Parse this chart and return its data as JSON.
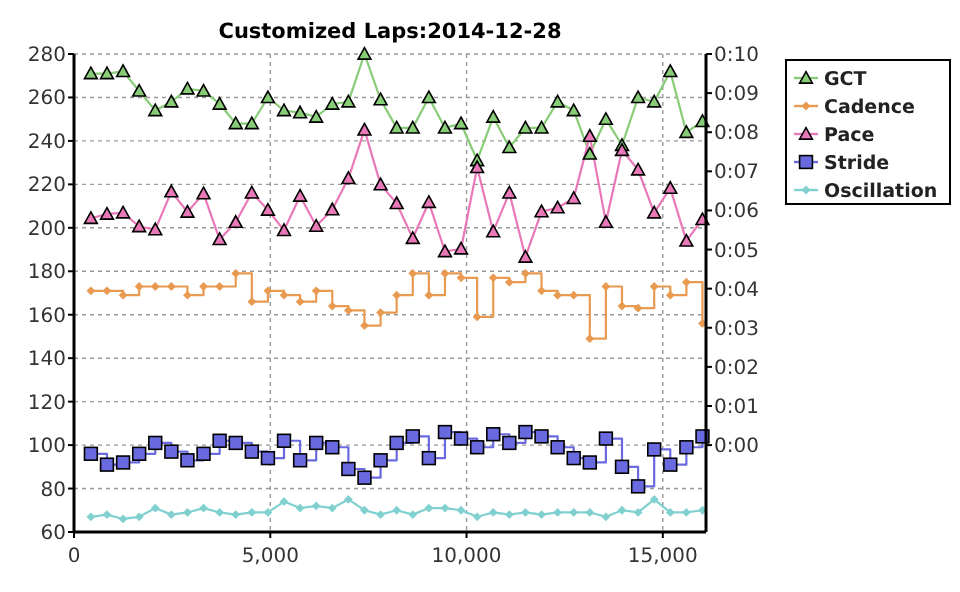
{
  "chart_data": {
    "type": "line",
    "title": "Customized Laps:2014-12-28",
    "x": [
      430,
      840,
      1250,
      1660,
      2070,
      2480,
      2890,
      3300,
      3710,
      4120,
      4530,
      4940,
      5350,
      5760,
      6170,
      6580,
      6990,
      7400,
      7810,
      8220,
      8630,
      9040,
      9450,
      9860,
      10270,
      10680,
      11090,
      11500,
      11910,
      12320,
      12730,
      13140,
      13550,
      13960,
      14370,
      14780,
      15190,
      15600,
      16010
    ],
    "series": [
      {
        "name": "GCT",
        "color": "#88cc77",
        "marker": "triangle",
        "values": [
          271,
          271,
          272,
          263,
          254,
          258,
          264,
          263,
          257,
          248,
          248,
          260,
          254,
          253,
          251,
          257,
          258,
          280,
          259,
          246,
          246,
          260,
          246,
          248,
          231,
          251,
          237,
          246,
          246,
          258,
          254,
          234,
          250,
          238,
          260,
          258,
          272,
          244,
          249
        ]
      },
      {
        "name": "Cadence",
        "type": "step",
        "color": "#e89a50",
        "marker": "diamond",
        "values": [
          171,
          171,
          169,
          173,
          173,
          173,
          169,
          173,
          173,
          179,
          166,
          171,
          169,
          166,
          171,
          164,
          162,
          155,
          161,
          169,
          179,
          169,
          179,
          177,
          159,
          177,
          175,
          179,
          171,
          169,
          169,
          149,
          173,
          164,
          163,
          173,
          169,
          175,
          156
        ]
      },
      {
        "name": "Pace",
        "axis": "y2",
        "color": "#e878b8",
        "marker": "triangle",
        "values": [
          5.8,
          5.91,
          5.94,
          5.59,
          5.51,
          6.48,
          5.96,
          6.43,
          5.26,
          5.7,
          6.45,
          6.01,
          5.49,
          6.37,
          5.6,
          6.02,
          6.82,
          8.06,
          6.66,
          6.18,
          5.29,
          6.21,
          4.95,
          5.02,
          7.1,
          5.46,
          6.45,
          4.81,
          5.97,
          6.07,
          6.31,
          7.9,
          5.7,
          7.54,
          7.04,
          5.94,
          6.57,
          5.22,
          5.77
        ]
      },
      {
        "name": "Stride",
        "type": "step",
        "color": "#6a6ae0",
        "marker": "square",
        "values": [
          96,
          91,
          92,
          96,
          101,
          97,
          93,
          96,
          102,
          101,
          97,
          94,
          102,
          93,
          101,
          99,
          89,
          85,
          93,
          101,
          104,
          94,
          106,
          103,
          99,
          105,
          101,
          106,
          104,
          99,
          94,
          92,
          103,
          90,
          81,
          98,
          91,
          99,
          104
        ]
      },
      {
        "name": "Oscillation",
        "color": "#80d0d0",
        "marker": "diamond",
        "values": [
          67,
          68,
          66,
          67,
          71,
          68,
          69,
          71,
          69,
          68,
          69,
          69,
          74,
          71,
          72,
          71,
          75,
          70,
          68,
          70,
          68,
          71,
          71,
          70,
          67,
          69,
          68,
          69,
          68,
          69,
          69,
          69,
          67,
          70,
          69,
          75,
          69,
          69,
          70
        ]
      }
    ],
    "xlim": [
      0,
      16100
    ],
    "xticks": [
      {
        "value": 0,
        "label": "0"
      },
      {
        "value": 5000,
        "label": "5,000"
      },
      {
        "value": 10000,
        "label": "10,000"
      },
      {
        "value": 15000,
        "label": "15,000"
      }
    ],
    "ylim": [
      60,
      280
    ],
    "yticks": [
      60,
      80,
      100,
      120,
      140,
      160,
      180,
      200,
      220,
      240,
      260,
      280
    ],
    "y2lim": [
      -2.222,
      10
    ],
    "y2ticks": [
      {
        "value": 0,
        "label": "0:00"
      },
      {
        "value": 1,
        "label": "0:01"
      },
      {
        "value": 2,
        "label": "0:02"
      },
      {
        "value": 3,
        "label": "0:03"
      },
      {
        "value": 4,
        "label": "0:04"
      },
      {
        "value": 5,
        "label": "0:05"
      },
      {
        "value": 6,
        "label": "0:06"
      },
      {
        "value": 7,
        "label": "0:07"
      },
      {
        "value": 8,
        "label": "0:08"
      },
      {
        "value": 9,
        "label": "0:09"
      },
      {
        "value": 10,
        "label": "0:10"
      }
    ],
    "grid": true,
    "legend": "right",
    "line_style": "solid"
  }
}
